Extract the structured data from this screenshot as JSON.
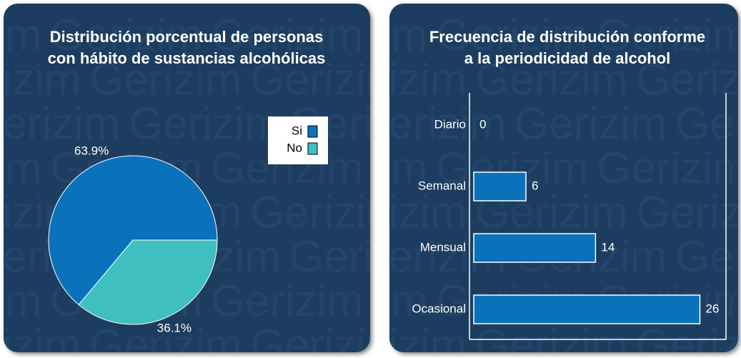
{
  "watermark": "Gerizim",
  "chart_data": [
    {
      "type": "pie",
      "title": [
        "Distribución porcentual de personas",
        "con hábito de sustancias alcohólicas"
      ],
      "categories": [
        "Si",
        "No"
      ],
      "values": [
        63.9,
        36.1
      ],
      "value_labels": [
        "63.9%",
        "36.1%"
      ],
      "colors": [
        "#0a72bb",
        "#3fbfbf"
      ],
      "legend": "top-right"
    },
    {
      "type": "hbar",
      "title": [
        "Frecuencia de distribución conforme",
        "a la periodicidad de alcohol"
      ],
      "categories": [
        "Diario",
        "Semanal",
        "Mensual",
        "Ocasional"
      ],
      "values": [
        0,
        6,
        14,
        26
      ],
      "color": "#0a72bb",
      "xlim": [
        0,
        29
      ]
    }
  ]
}
